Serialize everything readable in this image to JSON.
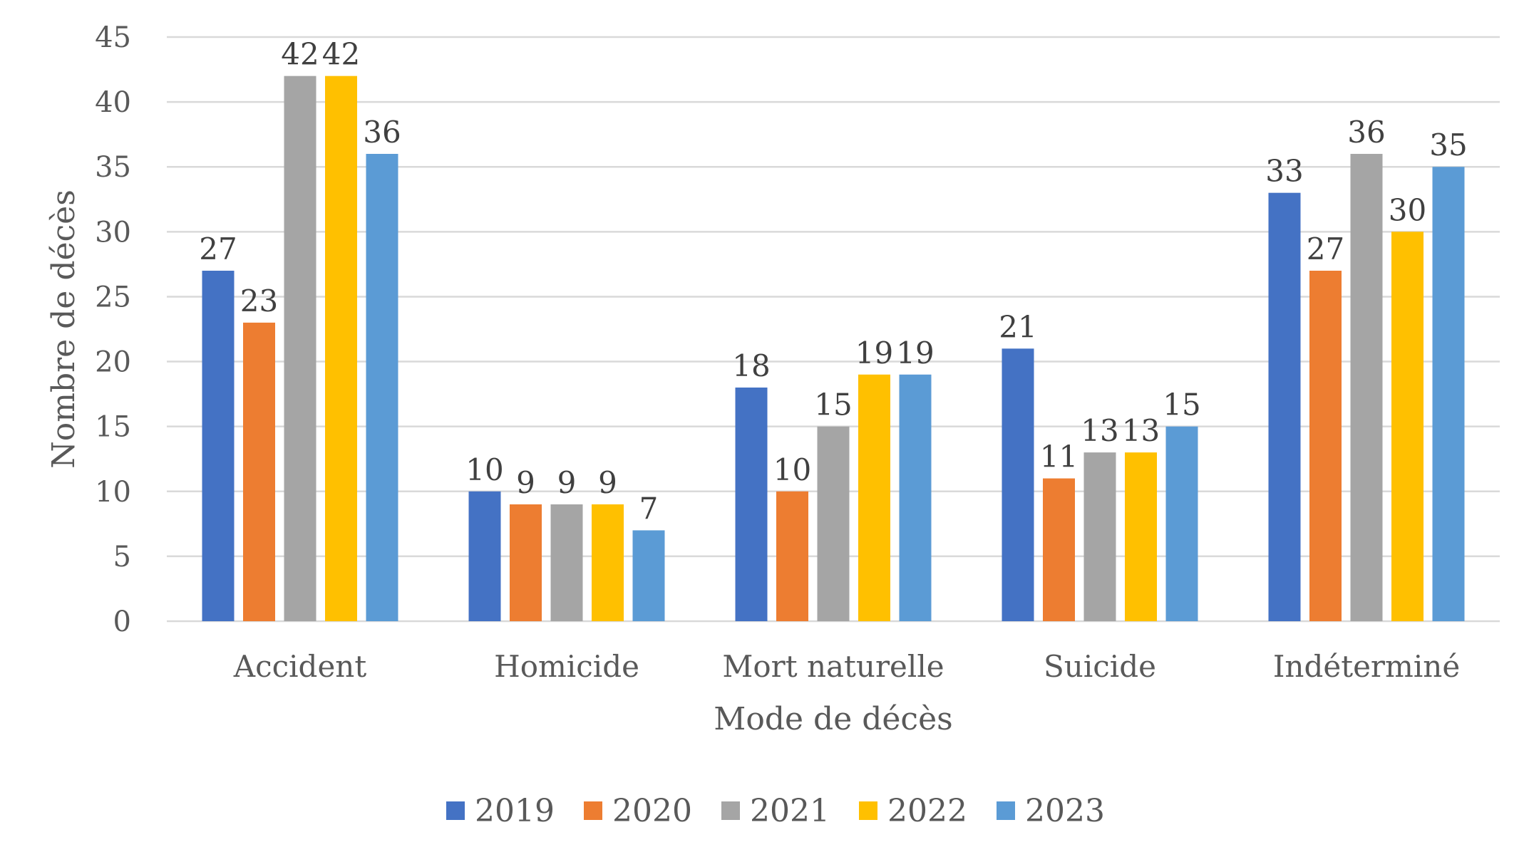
{
  "chart_data": {
    "type": "bar",
    "title": "",
    "xlabel": "Mode de décès",
    "ylabel": "Nombre de décès",
    "ylim": [
      0,
      45
    ],
    "yticks": [
      0,
      5,
      10,
      15,
      20,
      25,
      30,
      35,
      40,
      45
    ],
    "grid": true,
    "legend_position": "bottom",
    "data_labels": true,
    "categories": [
      "Accident",
      "Homicide",
      "Mort naturelle",
      "Suicide",
      "Indéterminé"
    ],
    "series": [
      {
        "name": "2019",
        "color": "#4472C4",
        "values": [
          27,
          10,
          18,
          21,
          33
        ]
      },
      {
        "name": "2020",
        "color": "#ED7D31",
        "values": [
          23,
          9,
          10,
          11,
          27
        ]
      },
      {
        "name": "2021",
        "color": "#A5A5A5",
        "values": [
          42,
          9,
          15,
          13,
          36
        ]
      },
      {
        "name": "2022",
        "color": "#FFC000",
        "values": [
          42,
          9,
          19,
          13,
          30
        ]
      },
      {
        "name": "2023",
        "color": "#5B9BD5",
        "values": [
          36,
          7,
          19,
          15,
          35
        ]
      }
    ]
  }
}
